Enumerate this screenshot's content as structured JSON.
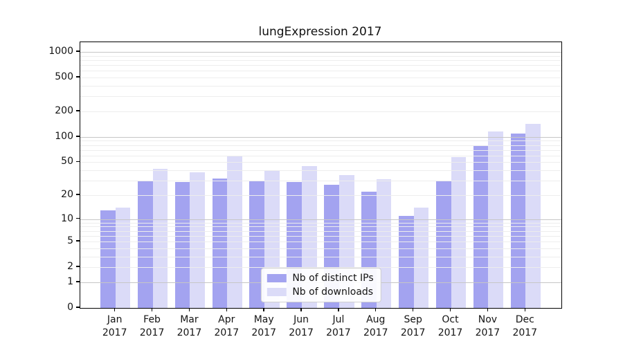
{
  "title": "lungExpression 2017",
  "chart_data": {
    "type": "bar",
    "title": "lungExpression 2017",
    "categories": [
      "Jan",
      "Feb",
      "Mar",
      "Apr",
      "May",
      "Jun",
      "Jul",
      "Aug",
      "Sep",
      "Oct",
      "Nov",
      "Dec"
    ],
    "year": "2017",
    "series": [
      {
        "name": "Nb of distinct IPs",
        "color": "#a3a3f0",
        "values": [
          13,
          30,
          29,
          32,
          30,
          29,
          27,
          22,
          11,
          30,
          78,
          110
        ]
      },
      {
        "name": "Nb of downloads",
        "color": "#dbdbf8",
        "values": [
          14,
          42,
          38,
          60,
          40,
          45,
          35,
          31,
          14,
          58,
          115,
          142
        ]
      }
    ],
    "yscale": "log1p",
    "ylim": [
      0,
      1300
    ],
    "yticks": [
      0,
      1,
      2,
      5,
      10,
      20,
      50,
      100,
      200,
      500,
      1000
    ],
    "minor_gridlines": [
      2,
      3,
      4,
      5,
      6,
      7,
      8,
      9,
      20,
      30,
      40,
      50,
      60,
      70,
      80,
      90,
      200,
      300,
      400,
      500,
      600,
      700,
      800,
      900
    ],
    "major_gridlines": [
      1,
      10,
      100,
      1000
    ],
    "grid": "horizontal",
    "legend_position": "lower center inside plot",
    "colors": {
      "bar_dark": "#a3a3f0",
      "bar_light": "#dbdbf8",
      "grid_minor": "#ededed",
      "grid_major": "#c6c6c6",
      "axis": "#000000",
      "text": "#141414"
    }
  },
  "legend": {
    "items": [
      {
        "label": "Nb of distinct IPs",
        "color": "#a3a3f0"
      },
      {
        "label": "Nb of downloads",
        "color": "#dbdbf8"
      }
    ]
  }
}
